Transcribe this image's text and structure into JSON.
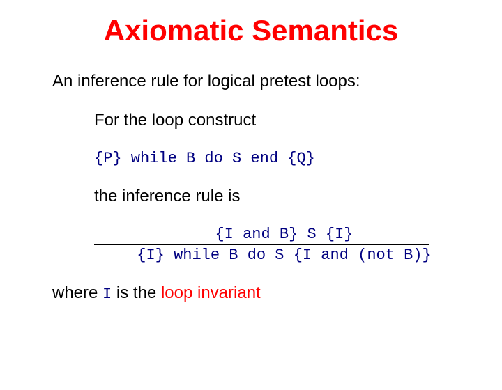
{
  "title": {
    "text": "Axiomatic Semantics",
    "color": "#ff0000",
    "fontsize": 42
  },
  "intro": {
    "text": "An inference rule for logical pretest loops:",
    "color": "#000000",
    "fontsize": 24
  },
  "construct_label": {
    "text": "For the loop construct",
    "color": "#000000",
    "fontsize": 24
  },
  "construct_code": {
    "text": "{P} while B do S end {Q}",
    "color": "#000080",
    "fontsize": 22
  },
  "rule_label": {
    "text": "the inference rule is",
    "color": "#000000",
    "fontsize": 24
  },
  "rule_top": {
    "text": "{I and B} S {I}",
    "color": "#000080",
    "fontsize": 22
  },
  "rule_bottom": {
    "text": "{I} while B do S {I and (not B)}",
    "color": "#000080",
    "fontsize": 22
  },
  "footer_prefix": {
    "text": "where ",
    "color": "#000000",
    "fontsize": 24
  },
  "footer_ivar": {
    "text": "I",
    "color": "#000080",
    "fontsize": 22
  },
  "footer_mid": {
    "text": " is the ",
    "color": "#000000",
    "fontsize": 24
  },
  "footer_term": {
    "text": "loop invariant",
    "color": "#ff0000",
    "fontsize": 24
  },
  "hr_color": "#000000"
}
